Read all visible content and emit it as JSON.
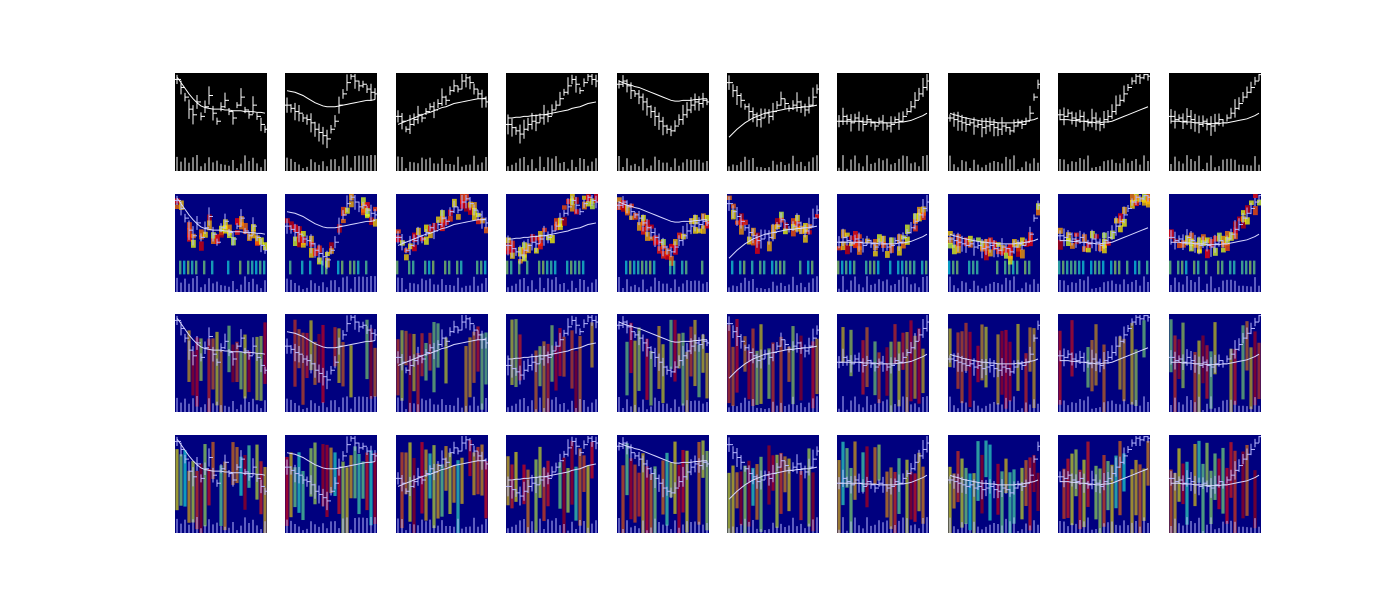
{
  "chart_data": {
    "type": "heatmap",
    "layout": {
      "rows": 4,
      "columns": 10
    },
    "rows": [
      {
        "kind": "ohlc-image",
        "colormap": "gray",
        "overlay": false
      },
      {
        "kind": "attention-overlay",
        "colormap": "jet",
        "overlay": true
      },
      {
        "kind": "attention-overlay",
        "colormap": "jet",
        "overlay": true
      },
      {
        "kind": "attention-overlay",
        "colormap": "jet",
        "overlay": true
      }
    ],
    "colors": {
      "background": "#000000",
      "low": "#00007f",
      "high": "#7f0000",
      "bars": "#ffffff"
    },
    "axes_visible": false,
    "title": "",
    "xlabel": "",
    "ylabel": "",
    "samples": [
      {
        "price": [
          0.92,
          0.82,
          0.7,
          0.55,
          0.48,
          0.64,
          0.46,
          0.58,
          0.72,
          0.5,
          0.4,
          0.58,
          0.66,
          0.52,
          0.44,
          0.6,
          0.7,
          0.54,
          0.48,
          0.6,
          0.46,
          0.36,
          0.3
        ],
        "ma": [
          0.95,
          0.88,
          0.81,
          0.74,
          0.68,
          0.63,
          0.59,
          0.57,
          0.56,
          0.55,
          0.55,
          0.55,
          0.54,
          0.54,
          0.53,
          0.53,
          0.53,
          0.52,
          0.52,
          0.52,
          0.51,
          0.51,
          0.5
        ]
      },
      {
        "price": [
          0.6,
          0.56,
          0.52,
          0.5,
          0.44,
          0.42,
          0.38,
          0.3,
          0.26,
          0.22,
          0.18,
          0.3,
          0.4,
          0.6,
          0.74,
          0.88,
          0.96,
          0.9,
          0.84,
          0.86,
          0.8,
          0.76,
          0.74
        ],
        "ma": [
          0.78,
          0.77,
          0.76,
          0.74,
          0.72,
          0.69,
          0.66,
          0.63,
          0.61,
          0.59,
          0.58,
          0.58,
          0.58,
          0.59,
          0.6,
          0.61,
          0.62,
          0.63,
          0.64,
          0.65,
          0.66,
          0.66,
          0.67
        ]
      },
      {
        "price": [
          0.46,
          0.4,
          0.3,
          0.36,
          0.42,
          0.48,
          0.44,
          0.52,
          0.58,
          0.54,
          0.62,
          0.7,
          0.66,
          0.78,
          0.84,
          0.8,
          0.9,
          0.94,
          0.88,
          0.8,
          0.74,
          0.68,
          0.64
        ],
        "ma": [
          0.36,
          0.38,
          0.4,
          0.42,
          0.44,
          0.46,
          0.48,
          0.5,
          0.51,
          0.53,
          0.55,
          0.57,
          0.58,
          0.6,
          0.62,
          0.63,
          0.64,
          0.65,
          0.66,
          0.67,
          0.68,
          0.68,
          0.69
        ]
      },
      {
        "price": [
          0.36,
          0.32,
          0.28,
          0.24,
          0.3,
          0.36,
          0.4,
          0.38,
          0.44,
          0.48,
          0.46,
          0.54,
          0.6,
          0.68,
          0.76,
          0.84,
          0.92,
          0.86,
          0.78,
          0.88,
          0.96,
          0.92,
          0.9
        ],
        "ma": [
          0.44,
          0.44,
          0.45,
          0.45,
          0.46,
          0.46,
          0.47,
          0.47,
          0.48,
          0.48,
          0.49,
          0.5,
          0.51,
          0.52,
          0.53,
          0.54,
          0.56,
          0.57,
          0.58,
          0.6,
          0.62,
          0.63,
          0.64
        ]
      },
      {
        "price": [
          0.86,
          0.9,
          0.84,
          0.78,
          0.74,
          0.7,
          0.64,
          0.58,
          0.52,
          0.46,
          0.4,
          0.34,
          0.3,
          0.28,
          0.34,
          0.42,
          0.48,
          0.54,
          0.6,
          0.64,
          0.62,
          0.66,
          0.64
        ],
        "ma": [
          0.9,
          0.88,
          0.86,
          0.85,
          0.83,
          0.82,
          0.8,
          0.78,
          0.76,
          0.74,
          0.72,
          0.7,
          0.68,
          0.66,
          0.65,
          0.65,
          0.66,
          0.66,
          0.66,
          0.67,
          0.67,
          0.68,
          0.68
        ]
      },
      {
        "price": [
          0.88,
          0.78,
          0.72,
          0.66,
          0.58,
          0.52,
          0.48,
          0.42,
          0.44,
          0.5,
          0.46,
          0.52,
          0.6,
          0.68,
          0.62,
          0.56,
          0.6,
          0.64,
          0.58,
          0.54,
          0.6,
          0.7,
          0.8
        ],
        "ma": [
          0.2,
          0.25,
          0.3,
          0.34,
          0.38,
          0.41,
          0.44,
          0.46,
          0.48,
          0.5,
          0.51,
          0.52,
          0.53,
          0.54,
          0.55,
          0.56,
          0.56,
          0.57,
          0.57,
          0.58,
          0.58,
          0.59,
          0.6
        ]
      },
      {
        "price": [
          0.4,
          0.46,
          0.42,
          0.38,
          0.44,
          0.4,
          0.36,
          0.42,
          0.38,
          0.34,
          0.4,
          0.38,
          0.34,
          0.36,
          0.42,
          0.4,
          0.46,
          0.52,
          0.58,
          0.66,
          0.74,
          0.82,
          0.9
        ],
        "ma": [
          0.4,
          0.4,
          0.4,
          0.4,
          0.4,
          0.4,
          0.39,
          0.39,
          0.39,
          0.39,
          0.38,
          0.38,
          0.38,
          0.38,
          0.38,
          0.39,
          0.39,
          0.4,
          0.41,
          0.43,
          0.45,
          0.47,
          0.5
        ]
      },
      {
        "price": [
          0.44,
          0.42,
          0.4,
          0.38,
          0.36,
          0.38,
          0.34,
          0.36,
          0.32,
          0.34,
          0.36,
          0.32,
          0.3,
          0.34,
          0.32,
          0.28,
          0.34,
          0.38,
          0.36,
          0.4,
          0.5,
          0.7,
          0.86
        ],
        "ma": [
          0.5,
          0.48,
          0.47,
          0.45,
          0.44,
          0.43,
          0.42,
          0.41,
          0.4,
          0.4,
          0.39,
          0.39,
          0.38,
          0.38,
          0.38,
          0.38,
          0.38,
          0.39,
          0.39,
          0.4,
          0.41,
          0.42,
          0.44
        ]
      },
      {
        "price": [
          0.48,
          0.46,
          0.5,
          0.44,
          0.42,
          0.46,
          0.4,
          0.38,
          0.44,
          0.4,
          0.36,
          0.42,
          0.46,
          0.52,
          0.6,
          0.66,
          0.74,
          0.82,
          0.9,
          0.96,
          0.94,
          0.98,
          0.96
        ],
        "ma": [
          0.42,
          0.42,
          0.42,
          0.41,
          0.41,
          0.4,
          0.4,
          0.39,
          0.39,
          0.38,
          0.38,
          0.39,
          0.39,
          0.4,
          0.42,
          0.44,
          0.46,
          0.48,
          0.5,
          0.52,
          0.54,
          0.56,
          0.58
        ]
      },
      {
        "price": [
          0.46,
          0.42,
          0.44,
          0.4,
          0.46,
          0.42,
          0.38,
          0.36,
          0.4,
          0.36,
          0.34,
          0.38,
          0.42,
          0.38,
          0.44,
          0.5,
          0.56,
          0.62,
          0.7,
          0.76,
          0.82,
          0.9,
          0.98
        ],
        "ma": [
          0.4,
          0.4,
          0.4,
          0.39,
          0.39,
          0.39,
          0.38,
          0.38,
          0.38,
          0.37,
          0.37,
          0.37,
          0.37,
          0.38,
          0.38,
          0.39,
          0.4,
          0.41,
          0.42,
          0.43,
          0.45,
          0.47,
          0.5
        ]
      }
    ]
  }
}
